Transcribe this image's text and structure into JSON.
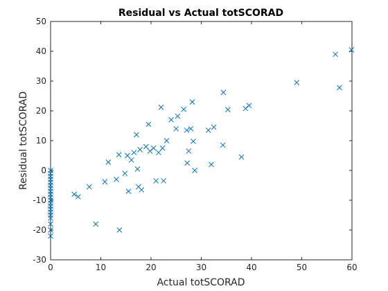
{
  "chart_data": {
    "type": "scatter",
    "title": "Residual vs Actual totSCORAD",
    "xlabel": "Actual totSCORAD",
    "ylabel": "Residual totSCORAD",
    "xlim": [
      0,
      60
    ],
    "ylim": [
      -30,
      50
    ],
    "xticks": [
      0,
      10,
      20,
      30,
      40,
      50,
      60
    ],
    "yticks": [
      -30,
      -20,
      -10,
      0,
      10,
      20,
      30,
      40,
      50
    ],
    "grid": false,
    "marker": "x",
    "marker_color": "#0072BD",
    "series": [
      {
        "points": [
          [
            0,
            0
          ],
          [
            0,
            -1
          ],
          [
            0,
            -2
          ],
          [
            0,
            -3
          ],
          [
            0,
            -4
          ],
          [
            0,
            -5
          ],
          [
            0,
            -6
          ],
          [
            0,
            -7
          ],
          [
            0,
            -8
          ],
          [
            0,
            -9
          ],
          [
            0,
            -10
          ],
          [
            0,
            -11
          ],
          [
            0,
            -12
          ],
          [
            0,
            -13
          ],
          [
            0,
            -14
          ],
          [
            0,
            -15
          ],
          [
            0,
            -16
          ],
          [
            0,
            -18
          ],
          [
            0,
            -20
          ],
          [
            0,
            -22
          ],
          [
            4.7,
            -8.0
          ],
          [
            5.5,
            -8.8
          ],
          [
            7.7,
            -5.5
          ],
          [
            9.0,
            -18.0
          ],
          [
            10.8,
            -3.8
          ],
          [
            11.5,
            2.8
          ],
          [
            13.1,
            -3.0
          ],
          [
            13.6,
            5.3
          ],
          [
            13.7,
            -20.0
          ],
          [
            14.8,
            -1.0
          ],
          [
            15.3,
            5.0
          ],
          [
            15.5,
            -7.0
          ],
          [
            16.1,
            3.5
          ],
          [
            16.6,
            6.0
          ],
          [
            17.1,
            12.0
          ],
          [
            17.3,
            0.5
          ],
          [
            17.5,
            -5.5
          ],
          [
            17.8,
            7.0
          ],
          [
            18.1,
            -6.5
          ],
          [
            19.0,
            8.0
          ],
          [
            19.5,
            15.5
          ],
          [
            19.8,
            6.5
          ],
          [
            20.5,
            7.5
          ],
          [
            21.0,
            -3.5
          ],
          [
            21.5,
            6.0
          ],
          [
            22.0,
            21.2
          ],
          [
            22.3,
            7.5
          ],
          [
            22.5,
            -3.5
          ],
          [
            23.1,
            10.0
          ],
          [
            24.0,
            17.0
          ],
          [
            25.0,
            14.0
          ],
          [
            25.3,
            18.2
          ],
          [
            26.5,
            20.5
          ],
          [
            27.1,
            13.5
          ],
          [
            27.2,
            2.5
          ],
          [
            27.5,
            6.5
          ],
          [
            27.9,
            14.0
          ],
          [
            28.2,
            23.0
          ],
          [
            28.4,
            9.8
          ],
          [
            28.7,
            0.0
          ],
          [
            31.4,
            13.5
          ],
          [
            32.0,
            2.0
          ],
          [
            32.5,
            14.5
          ],
          [
            34.3,
            8.5
          ],
          [
            34.4,
            26.2
          ],
          [
            35.3,
            20.4
          ],
          [
            38.0,
            4.5
          ],
          [
            38.8,
            20.8
          ],
          [
            39.5,
            21.8
          ],
          [
            49.0,
            29.5
          ],
          [
            56.7,
            39.0
          ],
          [
            57.5,
            27.8
          ],
          [
            59.9,
            40.5
          ]
        ]
      }
    ]
  }
}
